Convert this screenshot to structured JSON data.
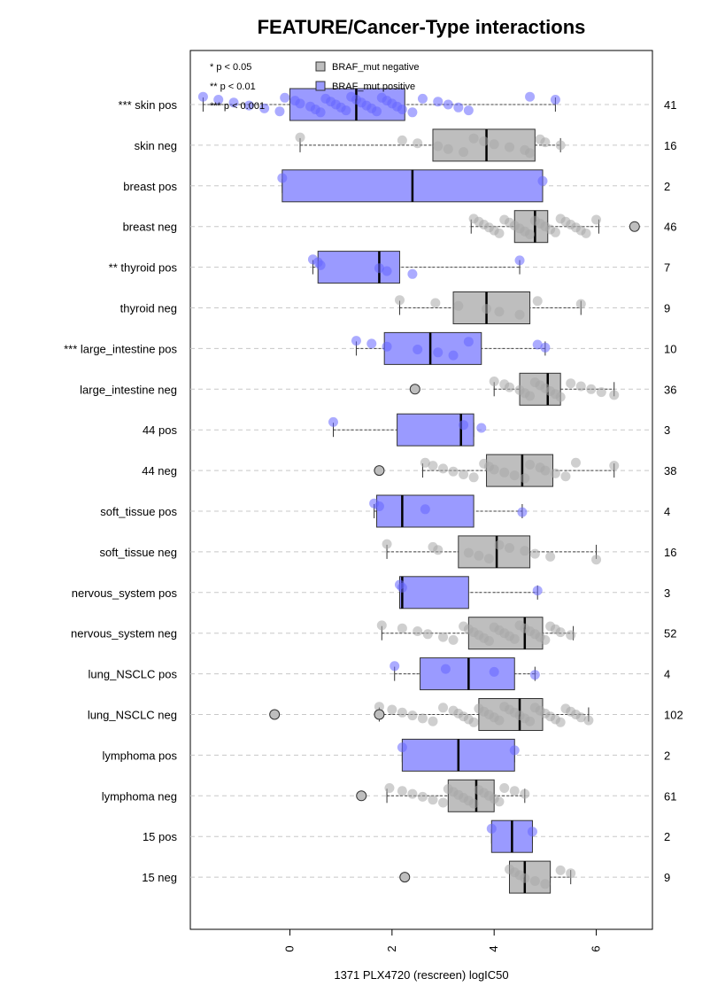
{
  "chart_data": {
    "type": "boxplot",
    "title": "FEATURE/Cancer-Type interactions",
    "xlabel": "1371 PLX4720 (rescreen) logIC50",
    "xlim": [
      -1.95,
      7.1
    ],
    "x_ticks": [
      0,
      2,
      4,
      6
    ],
    "grid": "horizontal dashed",
    "legend": {
      "placement": "top-left",
      "significance": [
        "* p < 0.05",
        "** p < 0.01",
        "*** p < 0.001"
      ],
      "entries": [
        {
          "name": "BRAF_mut negative",
          "color": "#bebebe"
        },
        {
          "name": "BRAF_mut positive",
          "color": "#9a9aff"
        }
      ]
    },
    "colors": {
      "negative_box": "#bebebe",
      "positive_box": "#9a9aff",
      "negative_point": "#a8a8a8",
      "positive_point": "#6666ff"
    },
    "groups": [
      {
        "label": "*** skin pos",
        "status": "positive",
        "n": "41",
        "whisker": [
          -1.7,
          5.2
        ],
        "box": [
          0.0,
          2.25
        ],
        "median": 1.3,
        "points": [
          -1.7,
          -1.4,
          -1.1,
          -0.8,
          -0.5,
          -0.2,
          -0.1,
          0.1,
          0.2,
          0.4,
          0.5,
          0.6,
          0.7,
          0.8,
          0.9,
          1.0,
          1.1,
          1.2,
          1.3,
          1.4,
          1.5,
          1.6,
          1.7,
          1.8,
          1.9,
          2.0,
          2.1,
          2.2,
          2.4,
          2.6,
          2.9,
          3.1,
          3.3,
          3.5,
          4.7,
          5.2
        ],
        "outliers": []
      },
      {
        "label": "skin neg",
        "status": "negative",
        "n": "16",
        "whisker": [
          0.2,
          5.3
        ],
        "box": [
          2.8,
          4.8
        ],
        "median": 3.85,
        "points": [
          0.2,
          2.2,
          2.5,
          2.9,
          3.1,
          3.4,
          3.6,
          3.8,
          4.0,
          4.3,
          4.6,
          4.7,
          4.9,
          5.0,
          5.3
        ],
        "outliers": []
      },
      {
        "label": "breast pos",
        "status": "positive",
        "n": "2",
        "whisker": [
          -0.15,
          4.95
        ],
        "box": [
          -0.15,
          4.95
        ],
        "median": 2.4,
        "points": [
          -0.15,
          4.95
        ],
        "outliers": []
      },
      {
        "label": "breast neg",
        "status": "negative",
        "n": "46",
        "whisker": [
          3.55,
          6.05
        ],
        "box": [
          4.4,
          5.05
        ],
        "median": 4.8,
        "points": [
          3.6,
          3.7,
          3.8,
          3.9,
          4.0,
          4.1,
          4.2,
          4.3,
          4.4,
          4.5,
          4.6,
          4.7,
          4.8,
          4.9,
          5.0,
          5.1,
          5.2,
          5.3,
          5.4,
          5.5,
          5.6,
          5.7,
          5.8,
          6.0
        ],
        "outliers": [
          6.75
        ]
      },
      {
        "label": "** thyroid pos",
        "status": "positive",
        "n": "7",
        "whisker": [
          0.45,
          4.5
        ],
        "box": [
          0.55,
          2.15
        ],
        "median": 1.75,
        "points": [
          0.45,
          0.55,
          0.6,
          1.75,
          1.9,
          2.4,
          4.5
        ],
        "outliers": []
      },
      {
        "label": "thyroid neg",
        "status": "negative",
        "n": "9",
        "whisker": [
          2.15,
          5.7
        ],
        "box": [
          3.2,
          4.7
        ],
        "median": 3.85,
        "points": [
          2.15,
          2.85,
          3.3,
          3.85,
          4.1,
          4.5,
          4.85,
          5.7
        ],
        "outliers": []
      },
      {
        "label": "*** large_intestine pos",
        "status": "positive",
        "n": "10",
        "whisker": [
          1.3,
          5.0
        ],
        "box": [
          1.85,
          3.75
        ],
        "median": 2.75,
        "points": [
          1.3,
          1.6,
          1.9,
          2.5,
          2.9,
          3.2,
          3.5,
          4.85,
          5.0
        ],
        "outliers": []
      },
      {
        "label": "large_intestine neg",
        "status": "negative",
        "n": "36",
        "whisker": [
          4.0,
          6.35
        ],
        "box": [
          4.5,
          5.3
        ],
        "median": 5.05,
        "points": [
          4.0,
          4.2,
          4.3,
          4.5,
          4.6,
          4.7,
          4.8,
          4.9,
          5.0,
          5.1,
          5.2,
          5.3,
          5.5,
          5.7,
          5.9,
          6.1,
          6.35
        ],
        "outliers": [
          2.45
        ]
      },
      {
        "label": "44 pos",
        "status": "positive",
        "n": "3",
        "whisker": [
          0.85,
          3.6
        ],
        "box": [
          2.1,
          3.6
        ],
        "median": 3.35,
        "points": [
          0.85,
          3.4,
          3.75
        ],
        "outliers": []
      },
      {
        "label": "44 neg",
        "status": "negative",
        "n": "38",
        "whisker": [
          2.6,
          6.35
        ],
        "box": [
          3.85,
          5.15
        ],
        "median": 4.55,
        "points": [
          2.65,
          2.8,
          3.0,
          3.2,
          3.4,
          3.6,
          3.8,
          3.9,
          4.0,
          4.2,
          4.4,
          4.6,
          4.7,
          4.9,
          5.0,
          5.2,
          5.4,
          5.6,
          6.35
        ],
        "outliers": [
          1.75
        ]
      },
      {
        "label": "soft_tissue pos",
        "status": "positive",
        "n": "4",
        "whisker": [
          1.65,
          4.55
        ],
        "box": [
          1.7,
          3.6
        ],
        "median": 2.2,
        "points": [
          1.65,
          1.75,
          2.65,
          4.55
        ],
        "outliers": []
      },
      {
        "label": "soft_tissue neg",
        "status": "negative",
        "n": "16",
        "whisker": [
          1.9,
          6.0
        ],
        "box": [
          3.3,
          4.7
        ],
        "median": 4.05,
        "points": [
          1.9,
          2.8,
          2.9,
          3.5,
          3.7,
          3.9,
          4.1,
          4.3,
          4.6,
          4.8,
          5.1,
          6.0
        ],
        "outliers": []
      },
      {
        "label": "nervous_system pos",
        "status": "positive",
        "n": "3",
        "whisker": [
          2.15,
          4.85
        ],
        "box": [
          2.15,
          3.5
        ],
        "median": 2.2,
        "points": [
          2.15,
          2.2,
          4.85
        ],
        "outliers": []
      },
      {
        "label": "nervous_system neg",
        "status": "negative",
        "n": "52",
        "whisker": [
          1.8,
          5.55
        ],
        "box": [
          3.5,
          4.95
        ],
        "median": 4.6,
        "points": [
          1.8,
          2.2,
          2.5,
          2.7,
          3.0,
          3.2,
          3.4,
          3.5,
          3.6,
          3.7,
          3.8,
          3.9,
          4.0,
          4.1,
          4.2,
          4.3,
          4.4,
          4.5,
          4.6,
          4.7,
          4.8,
          4.9,
          5.0,
          5.1,
          5.2,
          5.3,
          5.5
        ],
        "outliers": []
      },
      {
        "label": "lung_NSCLC pos",
        "status": "positive",
        "n": "4",
        "whisker": [
          2.05,
          4.8
        ],
        "box": [
          2.55,
          4.4
        ],
        "median": 3.5,
        "points": [
          2.05,
          3.05,
          4.0,
          4.8
        ],
        "outliers": []
      },
      {
        "label": "lung_NSCLC neg",
        "status": "negative",
        "n": "102",
        "whisker": [
          1.75,
          5.85
        ],
        "box": [
          3.7,
          4.95
        ],
        "median": 4.5,
        "points": [
          1.75,
          2.0,
          2.2,
          2.4,
          2.6,
          2.8,
          3.0,
          3.2,
          3.3,
          3.4,
          3.5,
          3.6,
          3.7,
          3.8,
          3.9,
          4.0,
          4.1,
          4.2,
          4.3,
          4.4,
          4.5,
          4.6,
          4.7,
          4.8,
          4.9,
          5.0,
          5.1,
          5.2,
          5.3,
          5.4,
          5.5,
          5.6,
          5.7,
          5.85
        ],
        "outliers": [
          -0.3,
          1.75
        ]
      },
      {
        "label": "lymphoma pos",
        "status": "positive",
        "n": "2",
        "whisker": [
          2.2,
          4.4
        ],
        "box": [
          2.2,
          4.4
        ],
        "median": 3.3,
        "points": [
          2.2,
          4.4
        ],
        "outliers": []
      },
      {
        "label": "lymphoma neg",
        "status": "negative",
        "n": "61",
        "whisker": [
          1.9,
          4.6
        ],
        "box": [
          3.1,
          4.0
        ],
        "median": 3.65,
        "points": [
          1.95,
          2.2,
          2.4,
          2.6,
          2.8,
          3.0,
          3.1,
          3.2,
          3.3,
          3.4,
          3.5,
          3.6,
          3.7,
          3.8,
          3.9,
          4.0,
          4.1,
          4.2,
          4.4,
          4.6
        ],
        "outliers": [
          1.4
        ]
      },
      {
        "label": "15 pos",
        "status": "positive",
        "n": "2",
        "whisker": [
          3.95,
          4.75
        ],
        "box": [
          3.95,
          4.75
        ],
        "median": 4.35,
        "points": [
          3.95,
          4.75
        ],
        "outliers": []
      },
      {
        "label": "15 neg",
        "status": "negative",
        "n": "9",
        "whisker": [
          4.3,
          5.5
        ],
        "box": [
          4.3,
          5.1
        ],
        "median": 4.6,
        "points": [
          4.3,
          4.4,
          4.5,
          4.6,
          4.8,
          5.0,
          5.3,
          5.5
        ],
        "outliers": [
          2.25
        ]
      }
    ]
  }
}
